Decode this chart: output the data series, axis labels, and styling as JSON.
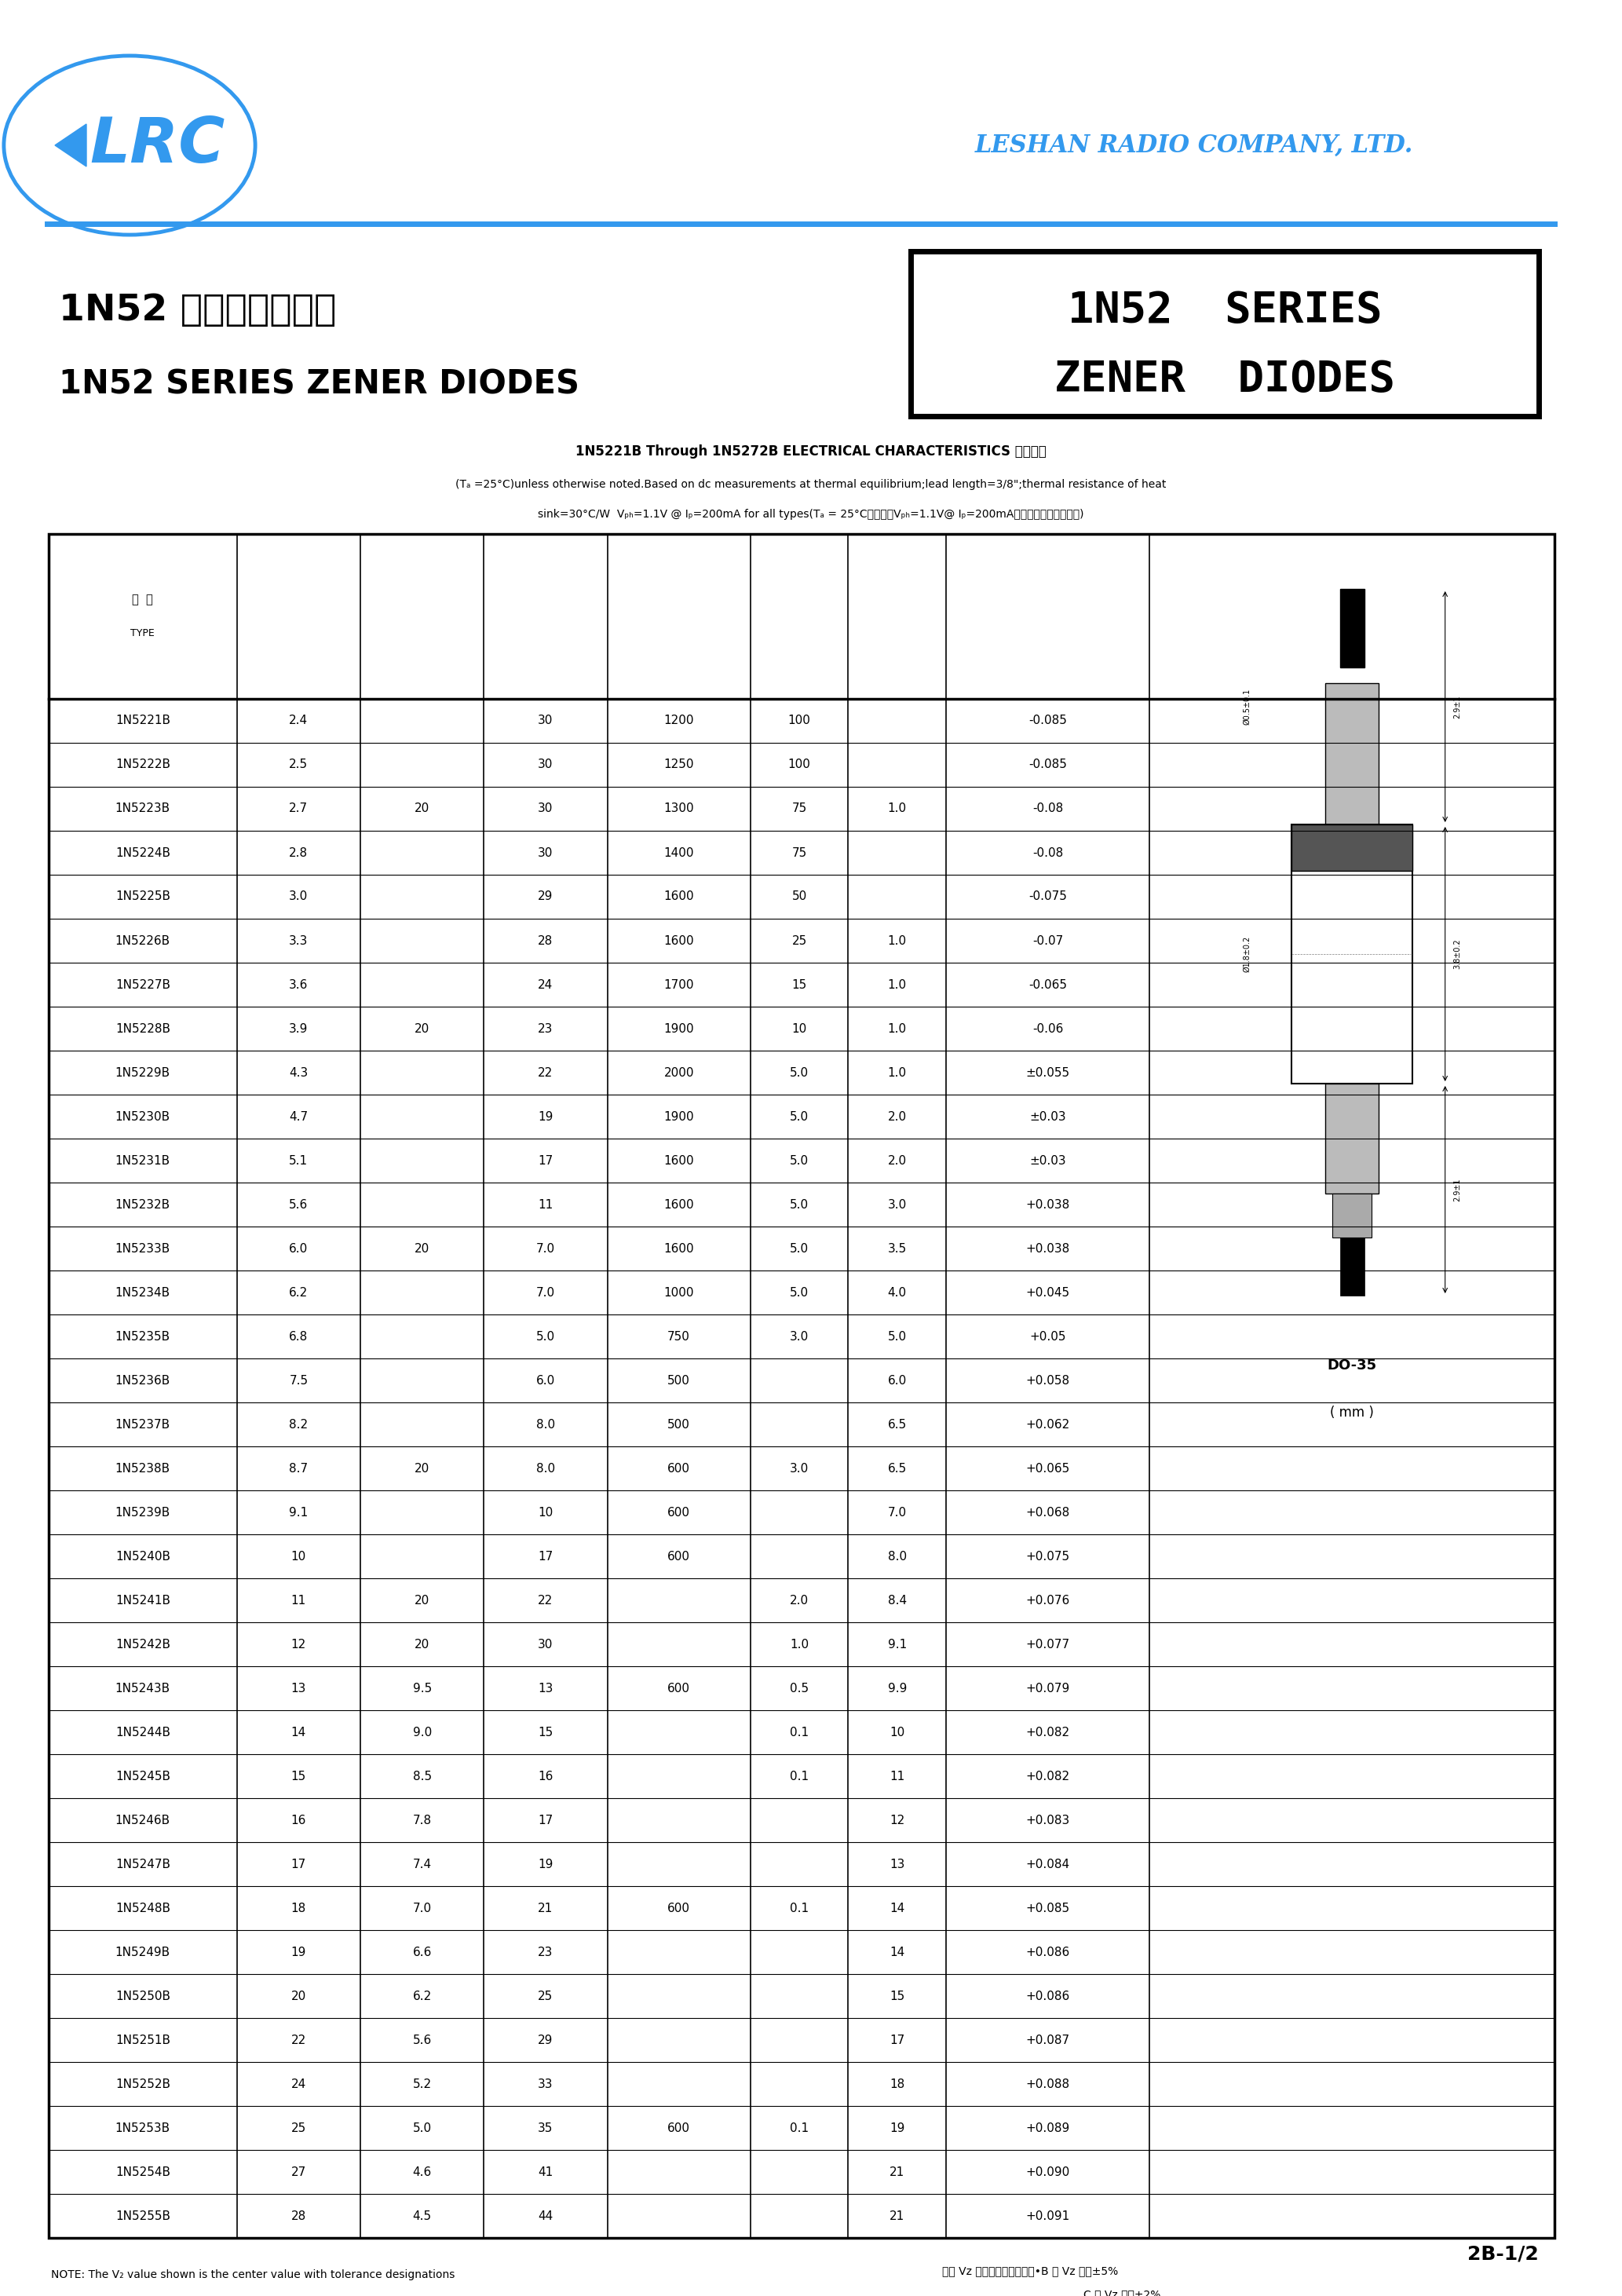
{
  "page_bg": "#ffffff",
  "lrc_color": "#3399ee",
  "company_name": "LESHAN RADIO COMPANY, LTD.",
  "title_box_text1": "1N52  SERIES",
  "title_box_text2": "ZENER  DIODES",
  "chinese_title": "1N52 系列稳压二极管",
  "english_title": "1N52 SERIES ZENER DIODES",
  "note_line1": "1N5221B Through 1N5272B ELECTRICAL CHARACTERISTICS 电性参数",
  "note_line2": "(Tₐ =25°C)unless otherwise noted.Based on dc measurements at thermal equilibrium;lead length=3/8\";thermal resistance of heat",
  "note_line3": "sink=30°C/W  Vₚₕ=1.1V @ Iₚ=200mA for all types(Tₐ = 25°C所有型号Vₚₕ=1.1V@ Iₚ=200mA，其它特别说明除外。)",
  "table_data": [
    [
      "1N5221B",
      "2.4",
      "",
      "30",
      "1200",
      "100",
      "",
      "-0.085"
    ],
    [
      "1N5222B",
      "2.5",
      "",
      "30",
      "1250",
      "100",
      "",
      "-0.085"
    ],
    [
      "1N5223B",
      "2.7",
      "20",
      "30",
      "1300",
      "75",
      "1.0",
      "-0.08"
    ],
    [
      "1N5224B",
      "2.8",
      "",
      "30",
      "1400",
      "75",
      "",
      "-0.08"
    ],
    [
      "1N5225B",
      "3.0",
      "",
      "29",
      "1600",
      "50",
      "",
      "-0.075"
    ],
    [
      "1N5226B",
      "3.3",
      "",
      "28",
      "1600",
      "25",
      "1.0",
      "-0.07"
    ],
    [
      "1N5227B",
      "3.6",
      "",
      "24",
      "1700",
      "15",
      "1.0",
      "-0.065"
    ],
    [
      "1N5228B",
      "3.9",
      "20",
      "23",
      "1900",
      "10",
      "1.0",
      "-0.06"
    ],
    [
      "1N5229B",
      "4.3",
      "",
      "22",
      "2000",
      "5.0",
      "1.0",
      "±0.055"
    ],
    [
      "1N5230B",
      "4.7",
      "",
      "19",
      "1900",
      "5.0",
      "2.0",
      "±0.03"
    ],
    [
      "1N5231B",
      "5.1",
      "",
      "17",
      "1600",
      "5.0",
      "2.0",
      "±0.03"
    ],
    [
      "1N5232B",
      "5.6",
      "",
      "11",
      "1600",
      "5.0",
      "3.0",
      "+0.038"
    ],
    [
      "1N5233B",
      "6.0",
      "20",
      "7.0",
      "1600",
      "5.0",
      "3.5",
      "+0.038"
    ],
    [
      "1N5234B",
      "6.2",
      "",
      "7.0",
      "1000",
      "5.0",
      "4.0",
      "+0.045"
    ],
    [
      "1N5235B",
      "6.8",
      "",
      "5.0",
      "750",
      "3.0",
      "5.0",
      "+0.05"
    ],
    [
      "1N5236B",
      "7.5",
      "",
      "6.0",
      "500",
      "",
      "6.0",
      "+0.058"
    ],
    [
      "1N5237B",
      "8.2",
      "",
      "8.0",
      "500",
      "",
      "6.5",
      "+0.062"
    ],
    [
      "1N5238B",
      "8.7",
      "20",
      "8.0",
      "600",
      "3.0",
      "6.5",
      "+0.065"
    ],
    [
      "1N5239B",
      "9.1",
      "",
      "10",
      "600",
      "",
      "7.0",
      "+0.068"
    ],
    [
      "1N5240B",
      "10",
      "",
      "17",
      "600",
      "",
      "8.0",
      "+0.075"
    ],
    [
      "1N5241B",
      "11",
      "20",
      "22",
      "",
      "2.0",
      "8.4",
      "+0.076"
    ],
    [
      "1N5242B",
      "12",
      "20",
      "30",
      "",
      "1.0",
      "9.1",
      "+0.077"
    ],
    [
      "1N5243B",
      "13",
      "9.5",
      "13",
      "600",
      "0.5",
      "9.9",
      "+0.079"
    ],
    [
      "1N5244B",
      "14",
      "9.0",
      "15",
      "",
      "0.1",
      "10",
      "+0.082"
    ],
    [
      "1N5245B",
      "15",
      "8.5",
      "16",
      "",
      "0.1",
      "11",
      "+0.082"
    ],
    [
      "1N5246B",
      "16",
      "7.8",
      "17",
      "",
      "",
      "12",
      "+0.083"
    ],
    [
      "1N5247B",
      "17",
      "7.4",
      "19",
      "",
      "",
      "13",
      "+0.084"
    ],
    [
      "1N5248B",
      "18",
      "7.0",
      "21",
      "600",
      "0.1",
      "14",
      "+0.085"
    ],
    [
      "1N5249B",
      "19",
      "6.6",
      "23",
      "",
      "",
      "14",
      "+0.086"
    ],
    [
      "1N5250B",
      "20",
      "6.2",
      "25",
      "",
      "",
      "15",
      "+0.086"
    ],
    [
      "1N5251B",
      "22",
      "5.6",
      "29",
      "",
      "",
      "17",
      "+0.087"
    ],
    [
      "1N5252B",
      "24",
      "5.2",
      "33",
      "",
      "",
      "18",
      "+0.088"
    ],
    [
      "1N5253B",
      "25",
      "5.0",
      "35",
      "600",
      "0.1",
      "19",
      "+0.089"
    ],
    [
      "1N5254B",
      "27",
      "4.6",
      "41",
      "",
      "",
      "21",
      "+0.090"
    ],
    [
      "1N5255B",
      "28",
      "4.5",
      "44",
      "",
      "",
      "21",
      "+0.091"
    ]
  ],
  "page_num": "2B-1/2"
}
